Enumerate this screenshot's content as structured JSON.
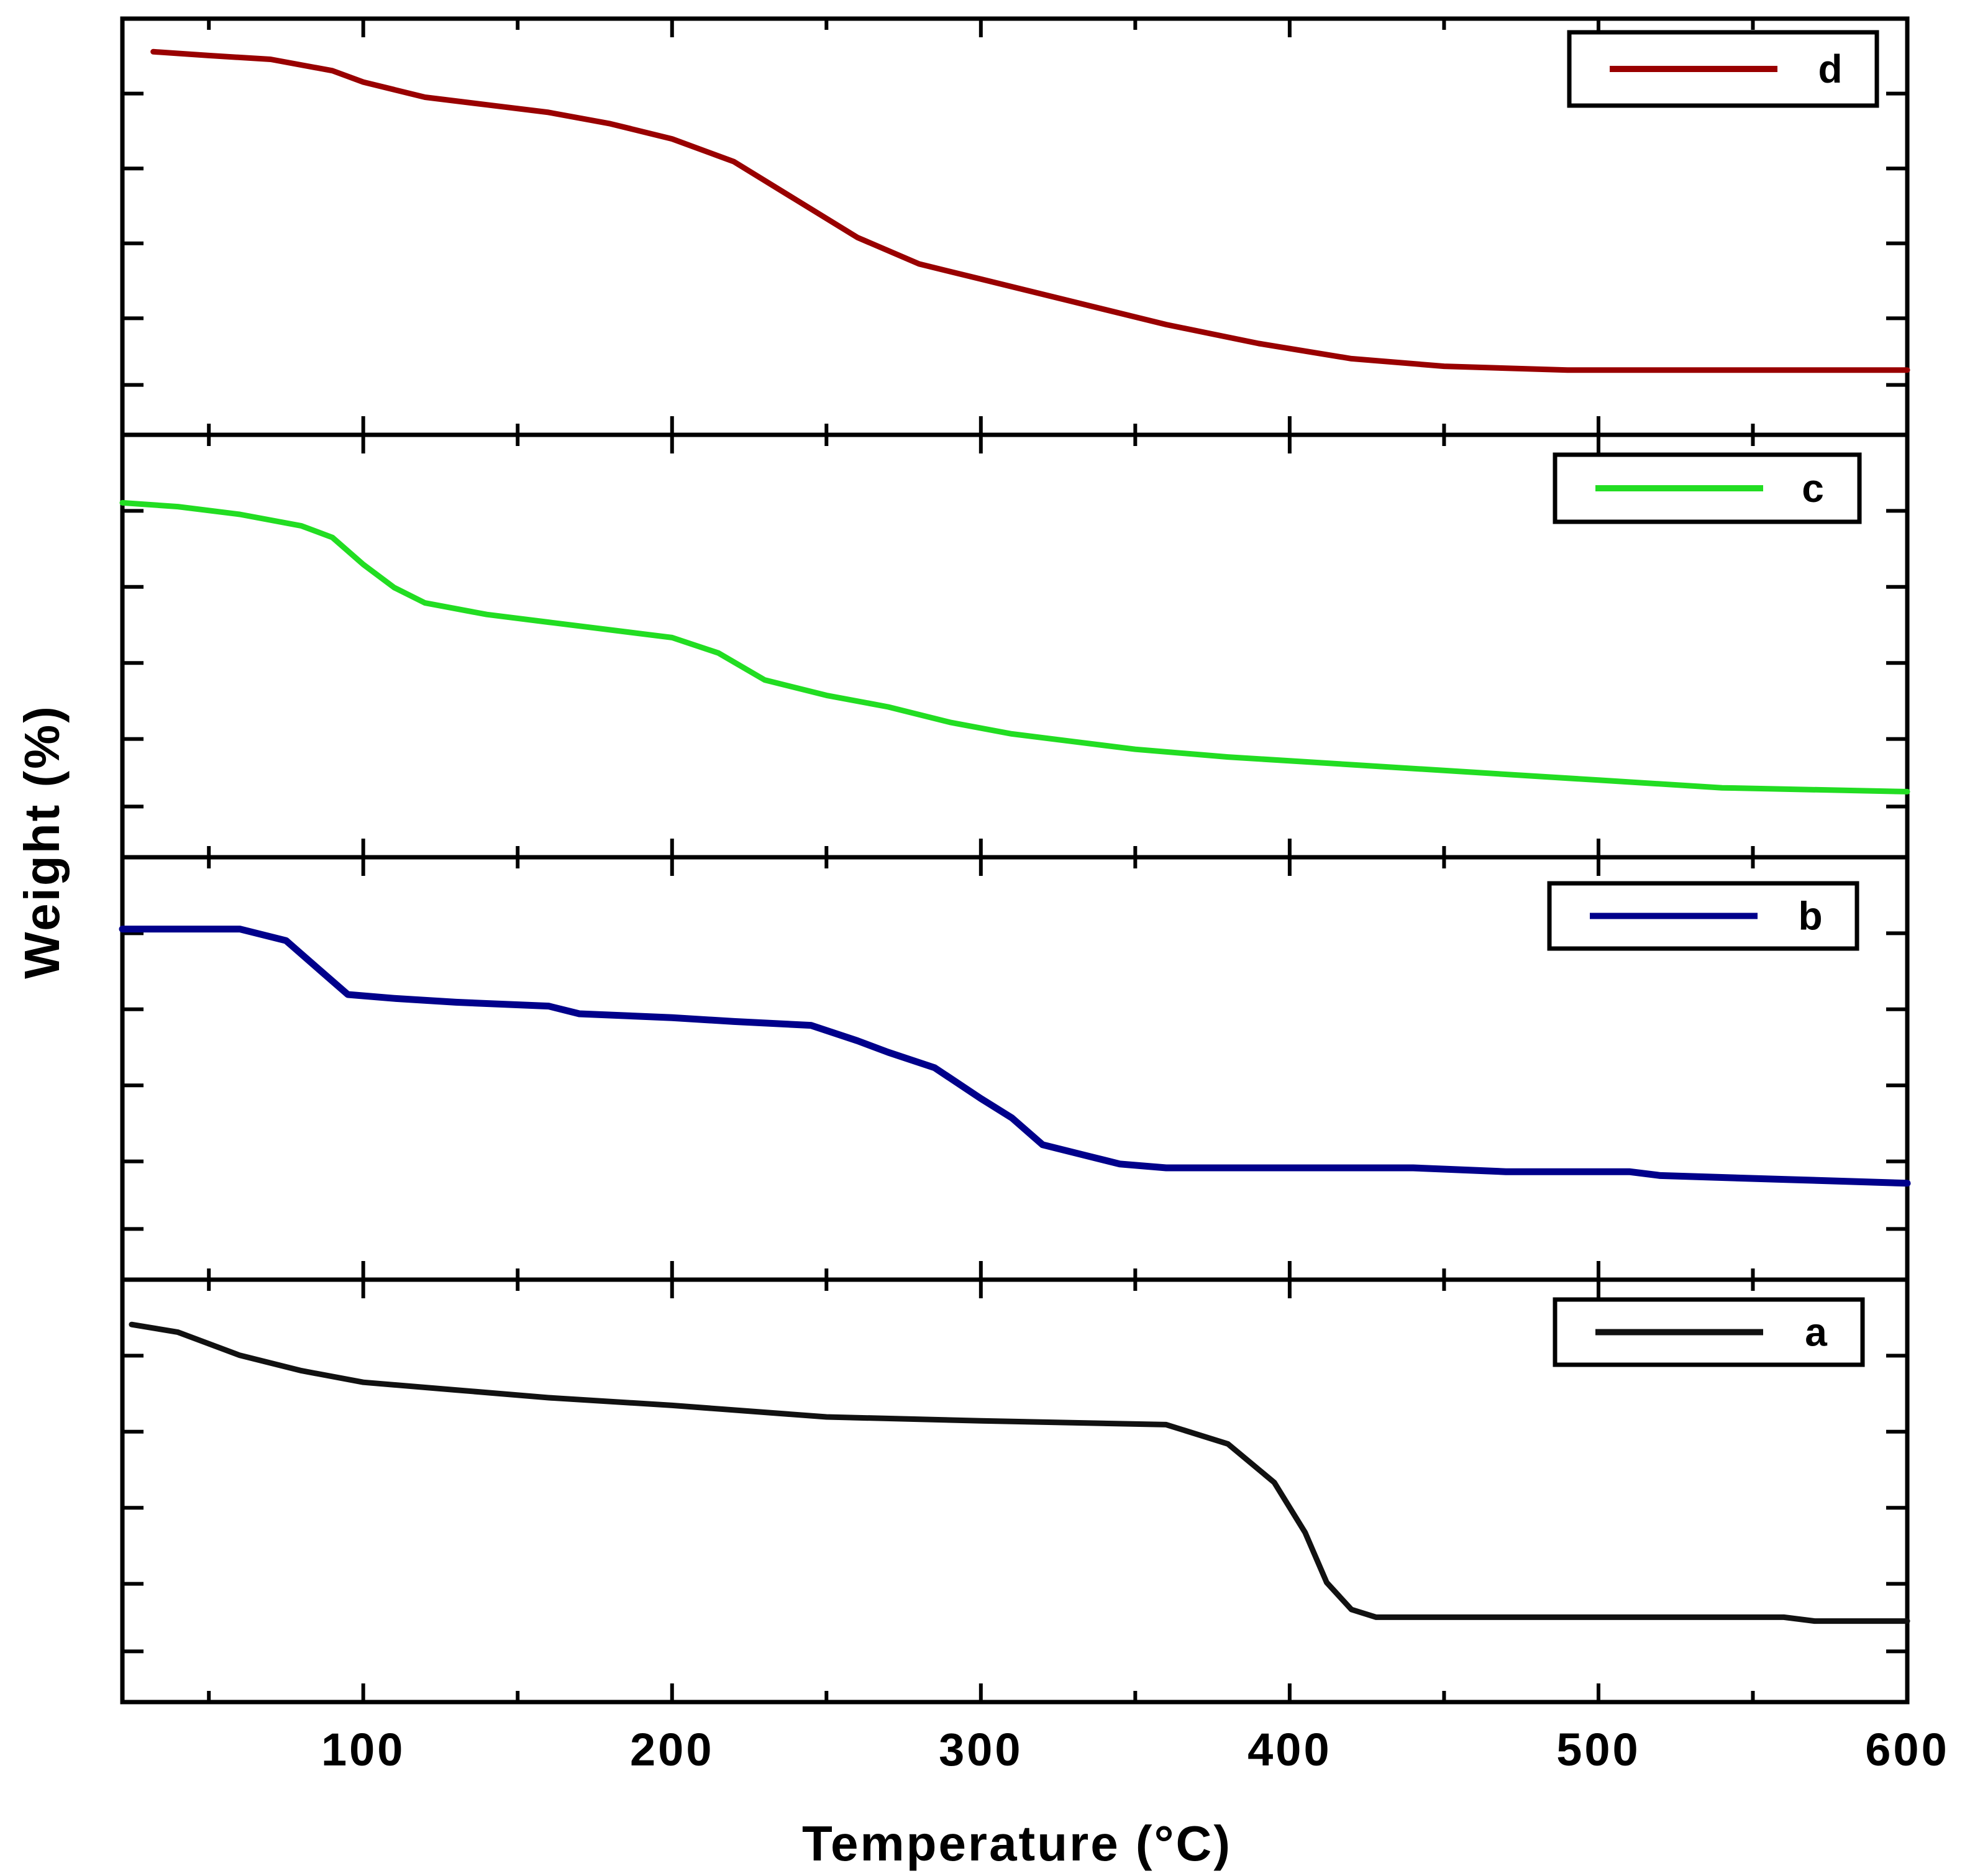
{
  "chart_data": {
    "type": "line",
    "title": "",
    "xlabel": "Temperature (°C)",
    "ylabel": "Weight (%)",
    "xlim": [
      22,
      600
    ],
    "x_ticks": [
      100,
      200,
      300,
      400,
      500,
      600
    ],
    "x_tick_labels": [
      "100",
      "200",
      "300",
      "400",
      "500",
      "600"
    ],
    "y_ticks_shown": false,
    "grid": false,
    "panels": [
      {
        "legend": "d",
        "color": "#990000",
        "ylim": [
          0,
          1
        ],
        "points": [
          [
            32,
            0.97
          ],
          [
            50,
            0.96
          ],
          [
            70,
            0.95
          ],
          [
            90,
            0.92
          ],
          [
            100,
            0.89
          ],
          [
            120,
            0.85
          ],
          [
            140,
            0.83
          ],
          [
            160,
            0.81
          ],
          [
            180,
            0.78
          ],
          [
            200,
            0.74
          ],
          [
            220,
            0.68
          ],
          [
            240,
            0.58
          ],
          [
            260,
            0.48
          ],
          [
            280,
            0.41
          ],
          [
            300,
            0.37
          ],
          [
            330,
            0.31
          ],
          [
            360,
            0.25
          ],
          [
            390,
            0.2
          ],
          [
            420,
            0.16
          ],
          [
            450,
            0.14
          ],
          [
            490,
            0.13
          ],
          [
            600,
            0.13
          ]
        ]
      },
      {
        "legend": "c",
        "color": "#22dd22",
        "ylim": [
          0,
          1
        ],
        "points": [
          [
            22,
            0.88
          ],
          [
            40,
            0.87
          ],
          [
            60,
            0.85
          ],
          [
            80,
            0.82
          ],
          [
            90,
            0.79
          ],
          [
            100,
            0.72
          ],
          [
            110,
            0.66
          ],
          [
            120,
            0.62
          ],
          [
            140,
            0.59
          ],
          [
            160,
            0.57
          ],
          [
            180,
            0.55
          ],
          [
            200,
            0.53
          ],
          [
            215,
            0.49
          ],
          [
            230,
            0.42
          ],
          [
            250,
            0.38
          ],
          [
            270,
            0.35
          ],
          [
            290,
            0.31
          ],
          [
            310,
            0.28
          ],
          [
            330,
            0.26
          ],
          [
            350,
            0.24
          ],
          [
            380,
            0.22
          ],
          [
            420,
            0.2
          ],
          [
            460,
            0.18
          ],
          [
            500,
            0.16
          ],
          [
            540,
            0.14
          ],
          [
            600,
            0.13
          ]
        ]
      },
      {
        "legend": "b",
        "color": "#00008b",
        "ylim": [
          0,
          1
        ],
        "points": [
          [
            22,
            0.87
          ],
          [
            40,
            0.87
          ],
          [
            60,
            0.87
          ],
          [
            75,
            0.84
          ],
          [
            85,
            0.77
          ],
          [
            95,
            0.7
          ],
          [
            110,
            0.69
          ],
          [
            130,
            0.68
          ],
          [
            160,
            0.67
          ],
          [
            170,
            0.65
          ],
          [
            200,
            0.64
          ],
          [
            220,
            0.63
          ],
          [
            245,
            0.62
          ],
          [
            260,
            0.58
          ],
          [
            270,
            0.55
          ],
          [
            285,
            0.51
          ],
          [
            300,
            0.43
          ],
          [
            310,
            0.38
          ],
          [
            320,
            0.31
          ],
          [
            335,
            0.28
          ],
          [
            345,
            0.26
          ],
          [
            360,
            0.25
          ],
          [
            400,
            0.25
          ],
          [
            440,
            0.25
          ],
          [
            470,
            0.24
          ],
          [
            510,
            0.24
          ],
          [
            520,
            0.23
          ],
          [
            560,
            0.22
          ],
          [
            600,
            0.21
          ]
        ]
      },
      {
        "legend": "a",
        "color": "#111111",
        "ylim": [
          0,
          1
        ],
        "points": [
          [
            25,
            0.94
          ],
          [
            40,
            0.92
          ],
          [
            60,
            0.86
          ],
          [
            80,
            0.82
          ],
          [
            100,
            0.79
          ],
          [
            130,
            0.77
          ],
          [
            160,
            0.75
          ],
          [
            200,
            0.73
          ],
          [
            250,
            0.7
          ],
          [
            300,
            0.69
          ],
          [
            360,
            0.68
          ],
          [
            380,
            0.63
          ],
          [
            395,
            0.53
          ],
          [
            405,
            0.4
          ],
          [
            412,
            0.27
          ],
          [
            420,
            0.2
          ],
          [
            428,
            0.18
          ],
          [
            500,
            0.18
          ],
          [
            560,
            0.18
          ],
          [
            570,
            0.17
          ],
          [
            600,
            0.17
          ]
        ]
      }
    ]
  }
}
